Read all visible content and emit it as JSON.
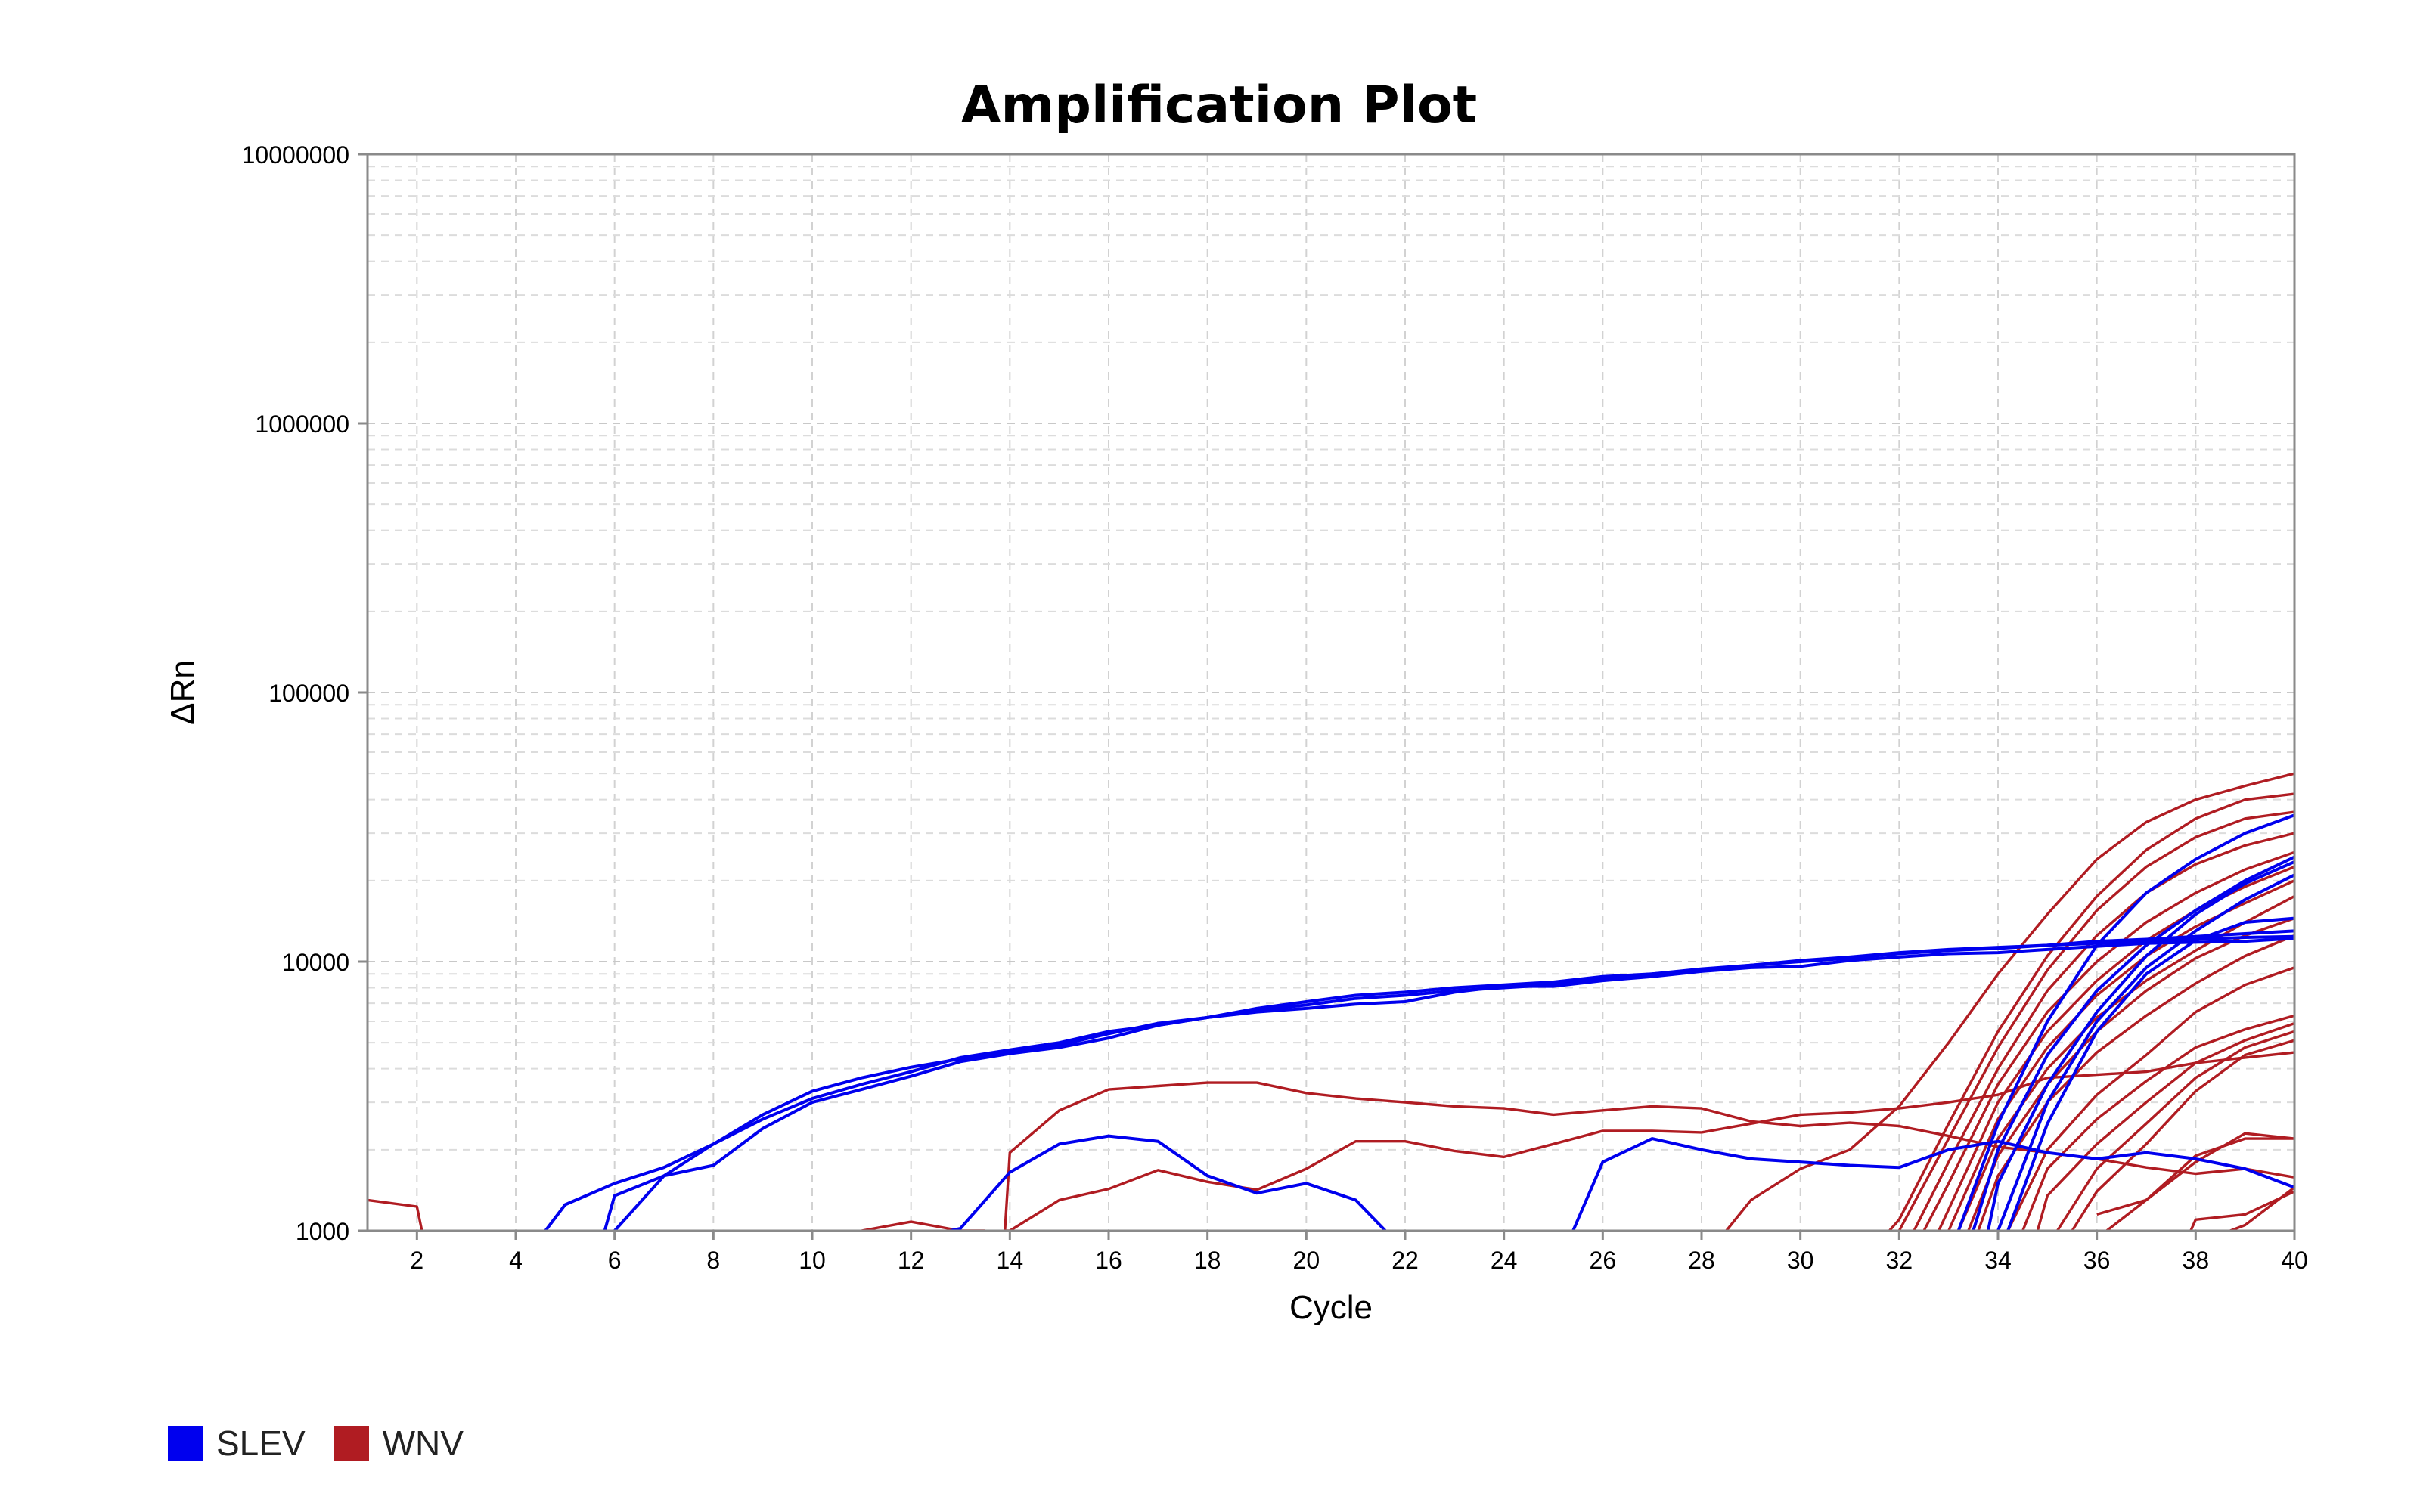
{
  "chart_data": {
    "type": "line",
    "title": "Amplification Plot",
    "xlabel": "Cycle",
    "ylabel": "ΔRn",
    "xlim": [
      1,
      40
    ],
    "ylim": [
      1000,
      10000000
    ],
    "y_scale": "log",
    "grid": true,
    "x_ticks": [
      2,
      4,
      6,
      8,
      10,
      12,
      14,
      16,
      18,
      20,
      22,
      24,
      26,
      28,
      30,
      32,
      34,
      36,
      38,
      40
    ],
    "y_ticks": [
      1000,
      10000,
      100000,
      1000000,
      10000000
    ],
    "y_tick_labels": [
      "1000",
      "10000",
      "100000",
      "1000000",
      "10000000"
    ],
    "legend": [
      {
        "name": "SLEV",
        "color": "#0000ee"
      },
      {
        "name": "WNV",
        "color": "#b01c22"
      }
    ],
    "legend_position": "bottom-left",
    "series": [
      {
        "group": "SLEV",
        "x": [
          4.6,
          5,
          6,
          7,
          8,
          9,
          10,
          11,
          12,
          13,
          14,
          15,
          16,
          17,
          18,
          19,
          20,
          21,
          22,
          23,
          24,
          25,
          26,
          27,
          28,
          29,
          30,
          31,
          32,
          33,
          34,
          35,
          36,
          37,
          38,
          39,
          40
        ],
        "y": [
          1000,
          1250,
          1500,
          1720,
          2100,
          2700,
          3300,
          3700,
          4050,
          4350,
          4600,
          4900,
          5400,
          5900,
          6200,
          6600,
          6900,
          7300,
          7500,
          7800,
          8000,
          8200,
          8700,
          9000,
          9300,
          9700,
          10000,
          10300,
          10700,
          11000,
          11200,
          11500,
          11700,
          11900,
          12100,
          12300,
          12400
        ]
      },
      {
        "group": "SLEV",
        "x": [
          6,
          7,
          8,
          9,
          10,
          11,
          12,
          13,
          14,
          15,
          16,
          17,
          18,
          19,
          20,
          21,
          22,
          23,
          24,
          25,
          26,
          27,
          28,
          29,
          30,
          31,
          32,
          33,
          34,
          35,
          36,
          37,
          38,
          39,
          40
        ],
        "y": [
          1000,
          1600,
          2100,
          2600,
          3100,
          3500,
          3900,
          4400,
          4700,
          5000,
          5500,
          5800,
          6200,
          6700,
          7100,
          7500,
          7700,
          8000,
          8200,
          8400,
          8800,
          9000,
          9400,
          9700,
          10100,
          10400,
          10800,
          11100,
          11300,
          11500,
          11900,
          12100,
          12400,
          12700,
          13000
        ]
      },
      {
        "group": "SLEV",
        "x": [
          5.8,
          6,
          7,
          8,
          9,
          10,
          11,
          12,
          13,
          14,
          15,
          16,
          17,
          18,
          19,
          20,
          21,
          22,
          23,
          24,
          25,
          26,
          27,
          28,
          29,
          30,
          31,
          32,
          33,
          34,
          35,
          36,
          37,
          38,
          39,
          40
        ],
        "y": [
          1000,
          1350,
          1600,
          1750,
          2400,
          3000,
          3350,
          3750,
          4250,
          4550,
          4800,
          5200,
          5800,
          6200,
          6500,
          6700,
          6950,
          7100,
          7700,
          8100,
          8100,
          8500,
          8800,
          9200,
          9500,
          9600,
          10100,
          10400,
          10700,
          10800,
          11100,
          11400,
          11700,
          11800,
          11900,
          12200
        ]
      },
      {
        "group": "SLEV",
        "x": [
          12.8,
          13,
          14,
          15,
          16,
          17,
          18,
          19,
          20,
          21,
          21.6
        ],
        "y": [
          1000,
          1020,
          1650,
          2100,
          2250,
          2150,
          1600,
          1380,
          1500,
          1300,
          1000
        ]
      },
      {
        "group": "SLEV",
        "x": [
          25.4,
          26,
          27,
          28,
          29,
          30,
          31,
          32,
          33,
          34,
          35,
          36,
          37,
          38,
          39,
          40
        ],
        "y": [
          1000,
          1800,
          2200,
          2000,
          1850,
          1800,
          1750,
          1720,
          2000,
          2150,
          1950,
          1850,
          1950,
          1850,
          1700,
          1450
        ]
      },
      {
        "group": "SLEV",
        "x": [
          33.2,
          34,
          35,
          36,
          37,
          38,
          39,
          40
        ],
        "y": [
          1000,
          2500,
          6000,
          11500,
          18000,
          24000,
          30000,
          35000
        ]
      },
      {
        "group": "SLEV",
        "x": [
          33.5,
          34,
          35,
          36,
          37,
          38,
          39,
          40
        ],
        "y": [
          1000,
          2000,
          4500,
          7800,
          11500,
          15500,
          20000,
          24500
        ]
      },
      {
        "group": "SLEV",
        "x": [
          33.8,
          34,
          35,
          36,
          37,
          38,
          39,
          40
        ],
        "y": [
          1000,
          1500,
          3500,
          6500,
          10500,
          15000,
          19500,
          23500
        ]
      },
      {
        "group": "SLEV",
        "x": [
          34,
          35,
          36,
          37,
          38,
          39,
          40
        ],
        "y": [
          1000,
          3000,
          6000,
          9500,
          13000,
          17000,
          21000
        ]
      },
      {
        "group": "SLEV",
        "x": [
          34.2,
          35,
          36,
          37,
          38,
          39,
          40
        ],
        "y": [
          1000,
          2500,
          5500,
          9000,
          12000,
          14000,
          14500
        ]
      },
      {
        "group": "WNV",
        "x": [
          1,
          2,
          2.1
        ],
        "y": [
          1300,
          1230,
          1000
        ]
      },
      {
        "group": "WNV",
        "x": [
          11,
          12,
          13,
          13.5
        ],
        "y": [
          1000,
          1080,
          1000,
          1000
        ]
      },
      {
        "group": "WNV",
        "x": [
          13.9,
          14,
          15,
          16,
          17,
          18,
          19,
          20,
          21,
          22,
          23,
          24,
          25,
          26,
          27,
          28,
          29,
          30,
          31,
          32,
          33,
          34,
          35,
          36,
          37,
          38,
          39,
          40
        ],
        "y": [
          1000,
          1950,
          2800,
          3350,
          3450,
          3550,
          3550,
          3250,
          3100,
          3000,
          2900,
          2850,
          2700,
          2800,
          2900,
          2850,
          2550,
          2450,
          2520,
          2450,
          2250,
          2050,
          1950,
          1850,
          1720,
          1630,
          1700,
          1580
        ]
      },
      {
        "group": "WNV",
        "x": [
          13.9,
          14,
          15,
          16,
          17,
          18,
          19,
          20,
          21,
          22,
          23,
          24,
          25,
          26,
          27,
          28,
          29,
          30,
          31,
          32,
          33,
          34,
          35,
          36,
          37,
          38,
          39,
          40
        ],
        "y": [
          1000,
          1000,
          1300,
          1430,
          1680,
          1520,
          1420,
          1700,
          2150,
          2150,
          1980,
          1880,
          2100,
          2350,
          2350,
          2320,
          2500,
          2700,
          2750,
          2850,
          3000,
          3200,
          3700,
          3800,
          3900,
          4200,
          4400,
          4600
        ]
      },
      {
        "group": "WNV",
        "x": [
          28.5,
          29,
          30,
          31,
          32,
          33,
          34,
          35,
          36,
          37,
          38,
          39,
          40
        ],
        "y": [
          1000,
          1300,
          1700,
          2000,
          2900,
          5000,
          9000,
          15000,
          24000,
          33000,
          40000,
          45000,
          50000
        ]
      },
      {
        "group": "WNV",
        "x": [
          31.8,
          32,
          33,
          34,
          35,
          36,
          37,
          38,
          39,
          40
        ],
        "y": [
          1000,
          1100,
          2500,
          5500,
          10500,
          17500,
          26000,
          34000,
          40000,
          42000
        ]
      },
      {
        "group": "WNV",
        "x": [
          32,
          33,
          34,
          35,
          36,
          37,
          38,
          39,
          40
        ],
        "y": [
          1000,
          2200,
          4800,
          9300,
          15500,
          22500,
          29000,
          34000,
          36000
        ]
      },
      {
        "group": "WNV",
        "x": [
          32.3,
          33,
          34,
          35,
          36,
          37,
          38,
          39,
          40
        ],
        "y": [
          1000,
          1800,
          4000,
          7800,
          12500,
          18000,
          23000,
          27000,
          30000
        ]
      },
      {
        "group": "WNV",
        "x": [
          32.5,
          33,
          34,
          35,
          36,
          37,
          38,
          39,
          40
        ],
        "y": [
          1000,
          1500,
          3500,
          6500,
          10000,
          14000,
          18000,
          22000,
          25500
        ]
      },
      {
        "group": "WNV",
        "x": [
          32.8,
          33,
          34,
          35,
          36,
          37,
          38,
          39,
          40
        ],
        "y": [
          1000,
          1200,
          3000,
          5500,
          8500,
          12000,
          15500,
          19000,
          22500
        ]
      },
      {
        "group": "WNV",
        "x": [
          33,
          34,
          35,
          36,
          37,
          38,
          39,
          40
        ],
        "y": [
          1000,
          2600,
          4800,
          7500,
          10500,
          13500,
          16500,
          20000
        ]
      },
      {
        "group": "WNV",
        "x": [
          33.2,
          34,
          35,
          36,
          37,
          38,
          39,
          40
        ],
        "y": [
          1000,
          2200,
          4000,
          6200,
          8500,
          11000,
          14000,
          17500
        ]
      },
      {
        "group": "WNV",
        "x": [
          33.4,
          34,
          35,
          36,
          37,
          38,
          39,
          40
        ],
        "y": [
          1000,
          1900,
          3500,
          5500,
          7800,
          10300,
          12500,
          14500
        ]
      },
      {
        "group": "WNV",
        "x": [
          33.6,
          34,
          35,
          36,
          37,
          38,
          39,
          40
        ],
        "y": [
          1000,
          1600,
          3000,
          4600,
          6300,
          8300,
          10500,
          12500
        ]
      },
      {
        "group": "WNV",
        "x": [
          34.2,
          35,
          36,
          37,
          38,
          39,
          40
        ],
        "y": [
          1000,
          2000,
          3200,
          4500,
          6500,
          8200,
          9500
        ]
      },
      {
        "group": "WNV",
        "x": [
          34.5,
          35,
          36,
          37,
          38,
          39,
          40
        ],
        "y": [
          1000,
          1700,
          2600,
          3600,
          4800,
          5600,
          6300
        ]
      },
      {
        "group": "WNV",
        "x": [
          34.8,
          35,
          36,
          37,
          38,
          39,
          40
        ],
        "y": [
          1000,
          1350,
          2100,
          3000,
          4200,
          5100,
          5900
        ]
      },
      {
        "group": "WNV",
        "x": [
          35.2,
          36,
          37,
          38,
          39,
          40
        ],
        "y": [
          1000,
          1700,
          2500,
          3700,
          4800,
          5500
        ]
      },
      {
        "group": "WNV",
        "x": [
          35.5,
          36,
          37,
          38,
          39,
          40
        ],
        "y": [
          1000,
          1400,
          2100,
          3300,
          4500,
          5100
        ]
      },
      {
        "group": "WNV",
        "x": [
          36.2,
          37,
          38,
          39,
          40
        ],
        "y": [
          1000,
          1300,
          1800,
          2300,
          2200
        ]
      },
      {
        "group": "WNV",
        "x": [
          36,
          37,
          38,
          39,
          40
        ],
        "y": [
          1150,
          1300,
          1900,
          2200,
          2200
        ]
      },
      {
        "group": "WNV",
        "x": [
          37.9,
          38,
          39,
          40
        ],
        "y": [
          1000,
          1100,
          1150,
          1400
        ]
      },
      {
        "group": "WNV",
        "x": [
          38.7,
          39,
          40
        ],
        "y": [
          1000,
          1050,
          1450
        ]
      }
    ]
  }
}
